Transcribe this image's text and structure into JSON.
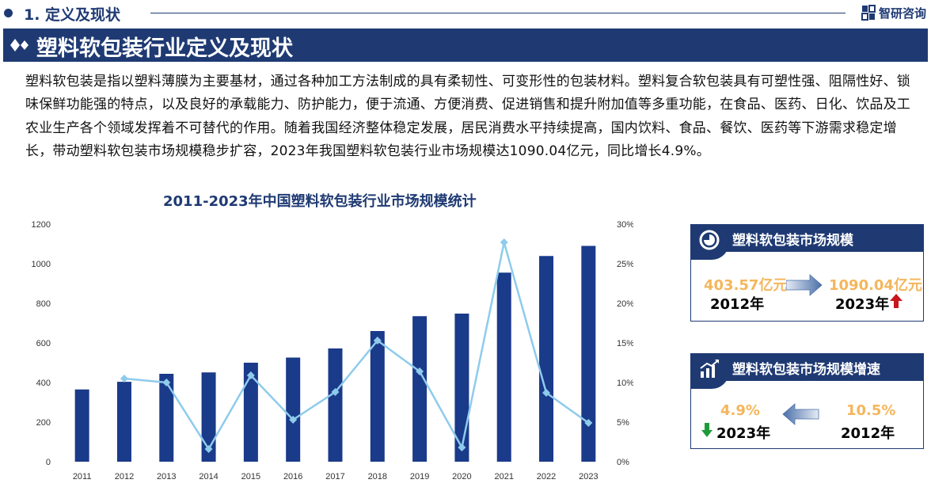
{
  "header": {
    "section_title": "1. 定义及现状",
    "brand": "智研咨询"
  },
  "banner": {
    "title": "塑料软包装行业定义及现状"
  },
  "intro": {
    "text": "塑料软包装是指以塑料薄膜为主要基材，通过各种加工方法制成的具有柔韧性、可变形性的包装材料。塑料复合软包装具有可塑性强、阻隔性好、锁味保鲜功能强的特点，以及良好的承载能力、防护能力，便于流通、方便消费、促进销售和提升附加值等多重功能，在食品、医药、日化、饮品及工农业生产各个领域发挥着不可替代的作用。随着我国经济整体稳定发展，居民消费水平持续提高，国内饮料、食品、餐饮、医药等下游需求稳定增长，带动塑料软包装市场规模稳步扩容，2023年我国塑料软包装行业市场规模达1090.04亿元，同比增长4.9%。"
  },
  "chart_data": {
    "type": "bar",
    "title": "2011-2023年中国塑料软包装行业市场规模统计",
    "categories": [
      "2011",
      "2012",
      "2013",
      "2014",
      "2015",
      "2016",
      "2017",
      "2018",
      "2019",
      "2020",
      "2021",
      "2022",
      "2023"
    ],
    "series": [
      {
        "type": "bar",
        "axis": "left",
        "color": "#1a3a8a",
        "values": [
          365,
          403.57,
          444,
          451,
          500,
          526,
          572,
          660,
          735,
          748,
          955,
          1039,
          1090.04
        ]
      },
      {
        "type": "line",
        "axis": "right",
        "color": "#8ecbec",
        "values": [
          null,
          10.5,
          10.0,
          1.6,
          10.9,
          5.3,
          8.8,
          15.3,
          11.4,
          1.8,
          27.7,
          8.7,
          4.9
        ]
      }
    ],
    "y_left": {
      "min": 0,
      "max": 1200,
      "ticks": [
        "0",
        "200",
        "400",
        "600",
        "800",
        "1000",
        "1200"
      ]
    },
    "y_right": {
      "min": 0,
      "max": 30,
      "ticks": [
        "0%",
        "5%",
        "10%",
        "15%",
        "20%",
        "25%",
        "30%"
      ]
    },
    "grid": false
  },
  "card_scale": {
    "title": "塑料软包装市场规模",
    "left_value": "403.57亿元",
    "left_year": "2012年",
    "right_value": "1090.04亿元",
    "right_year": "2023年",
    "trend_icon": "red-up-arrow-icon",
    "trend_color": "#c8161d"
  },
  "card_growth": {
    "title": "塑料软包装市场规模增速",
    "left_value": "4.9%",
    "left_year": "2023年",
    "right_value": "10.5%",
    "right_year": "2012年",
    "trend_icon": "green-down-arrow-icon",
    "trend_color": "#1f9a3a"
  },
  "colors": {
    "navy": "#1f3a73",
    "bar": "#1a3a8a",
    "line": "#8ecbec",
    "accent_orange": "#f4b65c"
  }
}
